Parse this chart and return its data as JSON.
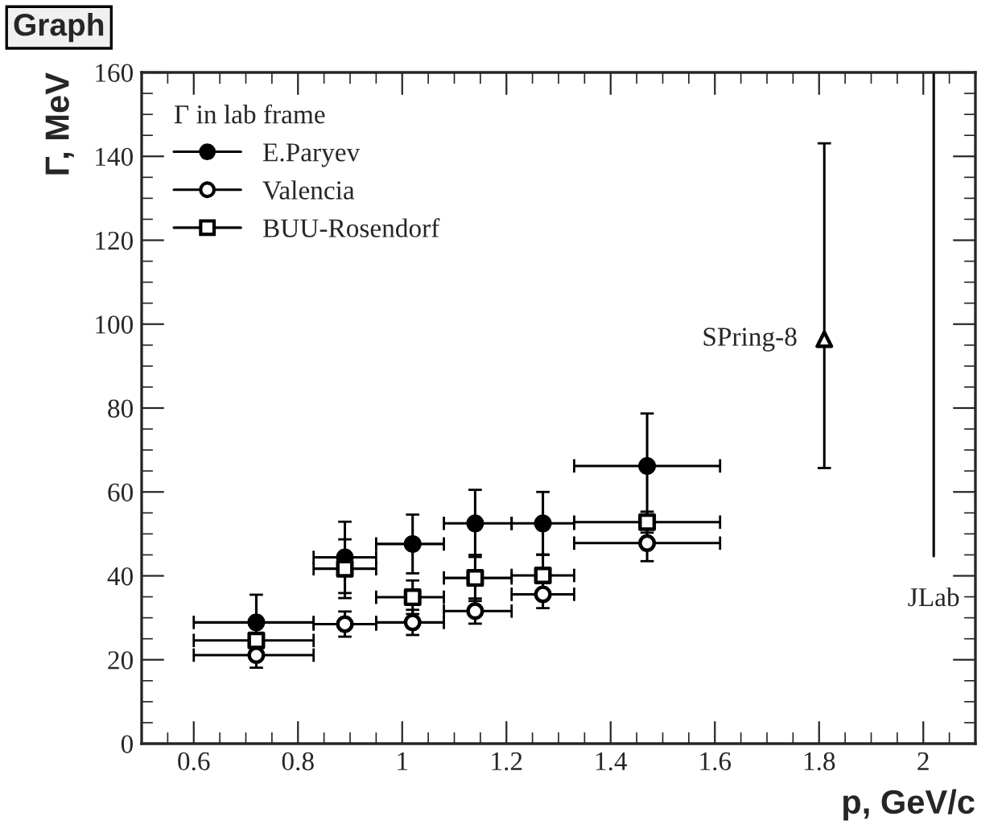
{
  "chart_data": {
    "type": "scatter",
    "title": "Graph",
    "xlabel": "p, GeV/c",
    "ylabel": "Γ, MeV",
    "legend_title": "Γ in lab frame",
    "xlim": [
      0.5,
      2.1
    ],
    "xticks": [
      {
        "value": 0.6,
        "label": "0.6"
      },
      {
        "value": 0.8,
        "label": "0.8"
      },
      1,
      {
        "value": 1.2,
        "label": "1.2"
      },
      {
        "value": 1.4,
        "label": "1.4"
      },
      {
        "value": 1.6,
        "label": "1.6"
      },
      {
        "value": 1.8,
        "label": "1.8"
      },
      2
    ],
    "ylim": [
      0,
      160
    ],
    "yticks": [
      0,
      20,
      40,
      60,
      80,
      100,
      120,
      140,
      160
    ],
    "grid": false,
    "legend": "top left",
    "series": [
      {
        "name": "E.Paryev",
        "color": "#000000",
        "marker": "circle",
        "x": [
          0.72,
          0.89,
          1.02,
          1.14,
          1.27,
          1.47
        ],
        "values": [
          28.9,
          44.4,
          47.6,
          52.5,
          52.5,
          66.2
        ],
        "errors": [
          6.6,
          8.5,
          7,
          8,
          7.5,
          12.5
        ],
        "xerrors": [
          [
            0.6,
            0.83
          ],
          [
            0.83,
            0.95
          ],
          [
            0.95,
            1.08
          ],
          [
            1.08,
            1.21
          ],
          [
            1.21,
            1.33
          ],
          [
            1.33,
            1.61
          ]
        ]
      },
      {
        "name": "Valencia",
        "color": "#000000",
        "marker": "circle-open",
        "x": [
          0.72,
          0.89,
          1.02,
          1.14,
          1.27,
          1.47
        ],
        "values": [
          21.1,
          28.5,
          28.9,
          31.6,
          35.6,
          47.8
        ],
        "errors": [
          3,
          3,
          3,
          3,
          3.3,
          4.3
        ],
        "xerrors": [
          [
            0.6,
            0.83
          ],
          [
            0.83,
            0.95
          ],
          [
            0.95,
            1.08
          ],
          [
            1.08,
            1.21
          ],
          [
            1.21,
            1.33
          ],
          [
            1.33,
            1.61
          ]
        ]
      },
      {
        "name": "BUU-Rosendorf",
        "color": "#000000",
        "marker": "square-open",
        "x": [
          0.72,
          0.89,
          1.02,
          1.14,
          1.27,
          1.47
        ],
        "values": [
          24.6,
          41.7,
          34.9,
          39.5,
          40.1,
          52.8
        ],
        "errors": [
          null,
          7,
          4,
          5.5,
          5,
          2.5
        ],
        "xerrors": [
          [
            0.6,
            0.83
          ],
          [
            0.83,
            0.95
          ],
          [
            0.95,
            1.08
          ],
          [
            1.08,
            1.21
          ],
          [
            1.21,
            1.33
          ],
          [
            1.33,
            1.61
          ]
        ]
      },
      {
        "color": "#000000",
        "marker": "triangle-open",
        "x": [
          1.81
        ],
        "values": [
          96.4
        ],
        "errors": [
          [
            65.7,
            143.1
          ]
        ]
      },
      {
        "type": "line",
        "color": "#000000",
        "marker": "none",
        "x": [
          2.02,
          2.02
        ],
        "values": [
          44.7,
          160
        ]
      }
    ],
    "annotations": [
      {
        "text": "SPring-8",
        "x": 1.81,
        "y": 96.4
      },
      {
        "text": "JLab",
        "x": 2.02,
        "y": 44.7
      }
    ]
  }
}
